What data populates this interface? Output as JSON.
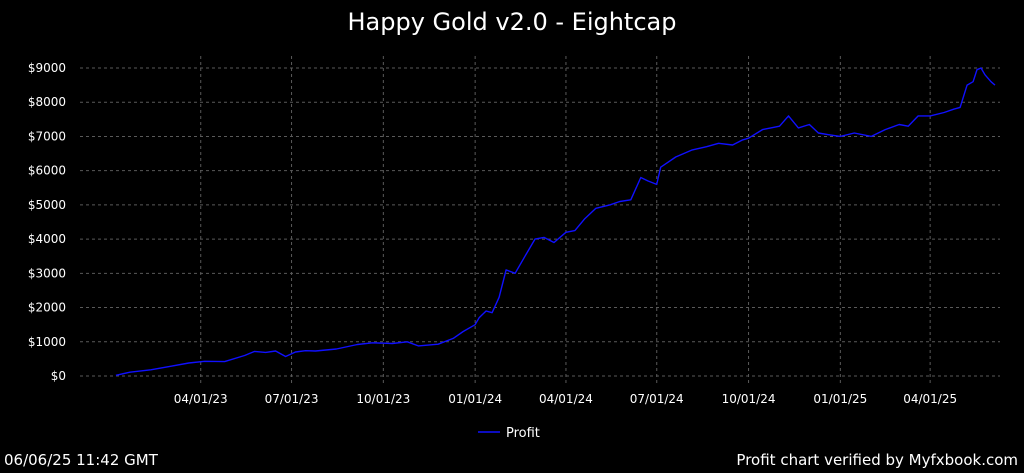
{
  "footer": {
    "timestamp": "06/06/25 11:42 GMT",
    "verified": "Profit chart verified by Myfxbook.com"
  },
  "chart_data": {
    "type": "line",
    "title": "Happy Gold v2.0 - Eightcap",
    "xlabel": "",
    "ylabel": "",
    "ylim": [
      0,
      9000
    ],
    "xlim": [
      "2022-12-01",
      "2025-06-10"
    ],
    "grid": true,
    "legend_position": "bottom-center",
    "y_ticks": [
      0,
      1000,
      2000,
      3000,
      4000,
      5000,
      6000,
      7000,
      8000,
      9000
    ],
    "y_tick_labels": [
      "$0",
      "$1000",
      "$2000",
      "$3000",
      "$4000",
      "$5000",
      "$6000",
      "$7000",
      "$8000",
      "$9000"
    ],
    "x_ticks": [
      "2023-04-01",
      "2023-07-01",
      "2023-10-01",
      "2024-01-01",
      "2024-04-01",
      "2024-07-01",
      "2024-10-01",
      "2025-01-01",
      "2025-04-01"
    ],
    "x_tick_labels": [
      "04/01/23",
      "07/01/23",
      "10/01/23",
      "01/01/24",
      "04/01/24",
      "07/01/24",
      "10/01/24",
      "01/01/25",
      "04/01/25"
    ],
    "colors": {
      "series": "#1010ff",
      "grid": "#5a5a5a",
      "background": "#000000",
      "text": "#ffffff"
    },
    "series": [
      {
        "name": "Profit",
        "x": [
          "2023-01-06",
          "2023-01-20",
          "2023-02-10",
          "2023-03-01",
          "2023-03-20",
          "2023-04-05",
          "2023-04-25",
          "2023-05-15",
          "2023-05-25",
          "2023-06-05",
          "2023-06-15",
          "2023-06-25",
          "2023-07-05",
          "2023-07-15",
          "2023-07-25",
          "2023-08-15",
          "2023-09-05",
          "2023-09-20",
          "2023-10-10",
          "2023-10-25",
          "2023-11-05",
          "2023-11-25",
          "2023-12-10",
          "2023-12-20",
          "2024-01-01",
          "2024-01-05",
          "2024-01-12",
          "2024-01-18",
          "2024-01-25",
          "2024-02-01",
          "2024-02-10",
          "2024-02-20",
          "2024-03-01",
          "2024-03-10",
          "2024-03-20",
          "2024-04-01",
          "2024-04-10",
          "2024-04-20",
          "2024-05-01",
          "2024-05-15",
          "2024-05-25",
          "2024-06-05",
          "2024-06-15",
          "2024-06-22",
          "2024-07-01",
          "2024-07-05",
          "2024-07-10",
          "2024-07-20",
          "2024-08-05",
          "2024-08-20",
          "2024-09-01",
          "2024-09-15",
          "2024-09-25",
          "2024-10-01",
          "2024-10-15",
          "2024-11-01",
          "2024-11-10",
          "2024-11-20",
          "2024-12-01",
          "2024-12-10",
          "2024-12-20",
          "2025-01-01",
          "2025-01-15",
          "2025-02-01",
          "2025-02-15",
          "2025-03-01",
          "2025-03-10",
          "2025-03-20",
          "2025-04-01",
          "2025-04-15",
          "2025-04-25",
          "2025-05-01",
          "2025-05-08",
          "2025-05-14",
          "2025-05-18",
          "2025-05-22",
          "2025-05-26",
          "2025-06-01",
          "2025-06-05"
        ],
        "values": [
          20,
          110,
          180,
          280,
          380,
          430,
          420,
          600,
          720,
          690,
          730,
          570,
          700,
          740,
          730,
          790,
          920,
          970,
          950,
          1000,
          880,
          930,
          1100,
          1300,
          1500,
          1700,
          1900,
          1850,
          2300,
          3100,
          3000,
          3500,
          4000,
          4050,
          3900,
          4200,
          4250,
          4600,
          4900,
          5000,
          5100,
          5150,
          5800,
          5700,
          5600,
          6100,
          6200,
          6400,
          6600,
          6700,
          6800,
          6750,
          6900,
          6950,
          7200,
          7300,
          7600,
          7250,
          7350,
          7100,
          7050,
          7000,
          7100,
          7000,
          7200,
          7350,
          7300,
          7600,
          7600,
          7700,
          7800,
          7850,
          8500,
          8600,
          8950,
          9000,
          8800,
          8600,
          8500
        ]
      }
    ]
  }
}
